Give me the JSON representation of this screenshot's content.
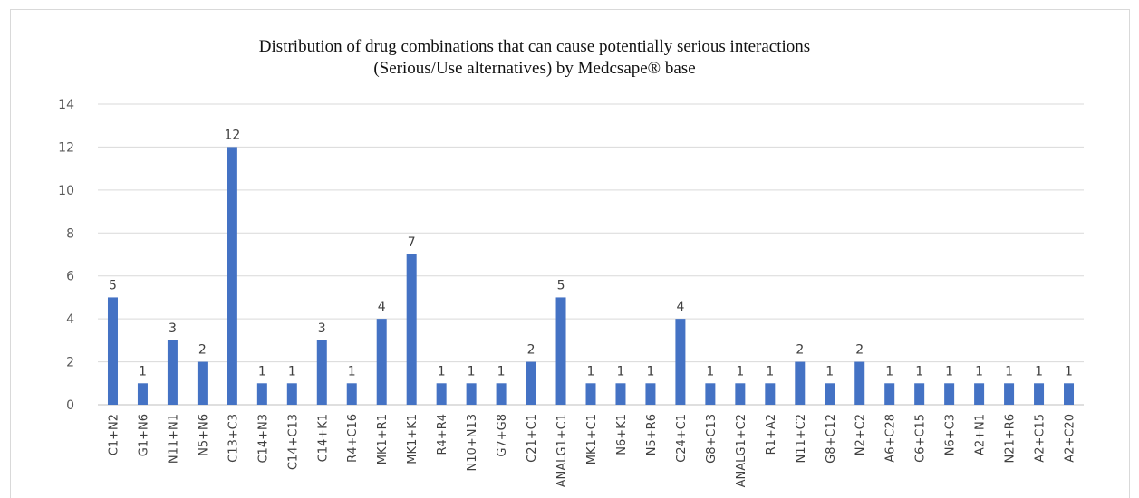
{
  "chart_data": {
    "type": "bar",
    "title": "Distribution of drug combinations that can cause potentially serious interactions",
    "subtitle": "(Serious/Use alternatives) by Medcsape® base",
    "categories": [
      "C1+N2",
      "G1+N6",
      "N11+N1",
      "N5+N6",
      "C13+C3",
      "C14+N3",
      "C14+C13",
      "C14+K1",
      "R4+C16",
      "MK1+R1",
      "MK1+K1",
      "R4+R4",
      "N10+N13",
      "G7+G8",
      "C21+C1",
      "ANALG1+C1",
      "MK1+C1",
      "N6+K1",
      "N5+R6",
      "C24+C1",
      "G8+C13",
      "ANALG1+C2",
      "R1+A2",
      "N11+C2",
      "G8+C12",
      "N2+C2",
      "A6+C28",
      "C6+C15",
      "N6+C3",
      "A2+N1",
      "N21+R6",
      "A2+C15",
      "A2+C20"
    ],
    "values": [
      5,
      1,
      3,
      2,
      12,
      1,
      1,
      3,
      1,
      4,
      7,
      1,
      1,
      1,
      2,
      5,
      1,
      1,
      1,
      4,
      1,
      1,
      1,
      2,
      1,
      2,
      1,
      1,
      1,
      1,
      1,
      1,
      1
    ],
    "yticks": [
      0,
      2,
      4,
      6,
      8,
      10,
      12,
      14
    ],
    "ylim": [
      0,
      14
    ],
    "grid": true,
    "data_labels": true,
    "bar_color": "#4472c4",
    "grid_color": "#d9d9d9"
  }
}
